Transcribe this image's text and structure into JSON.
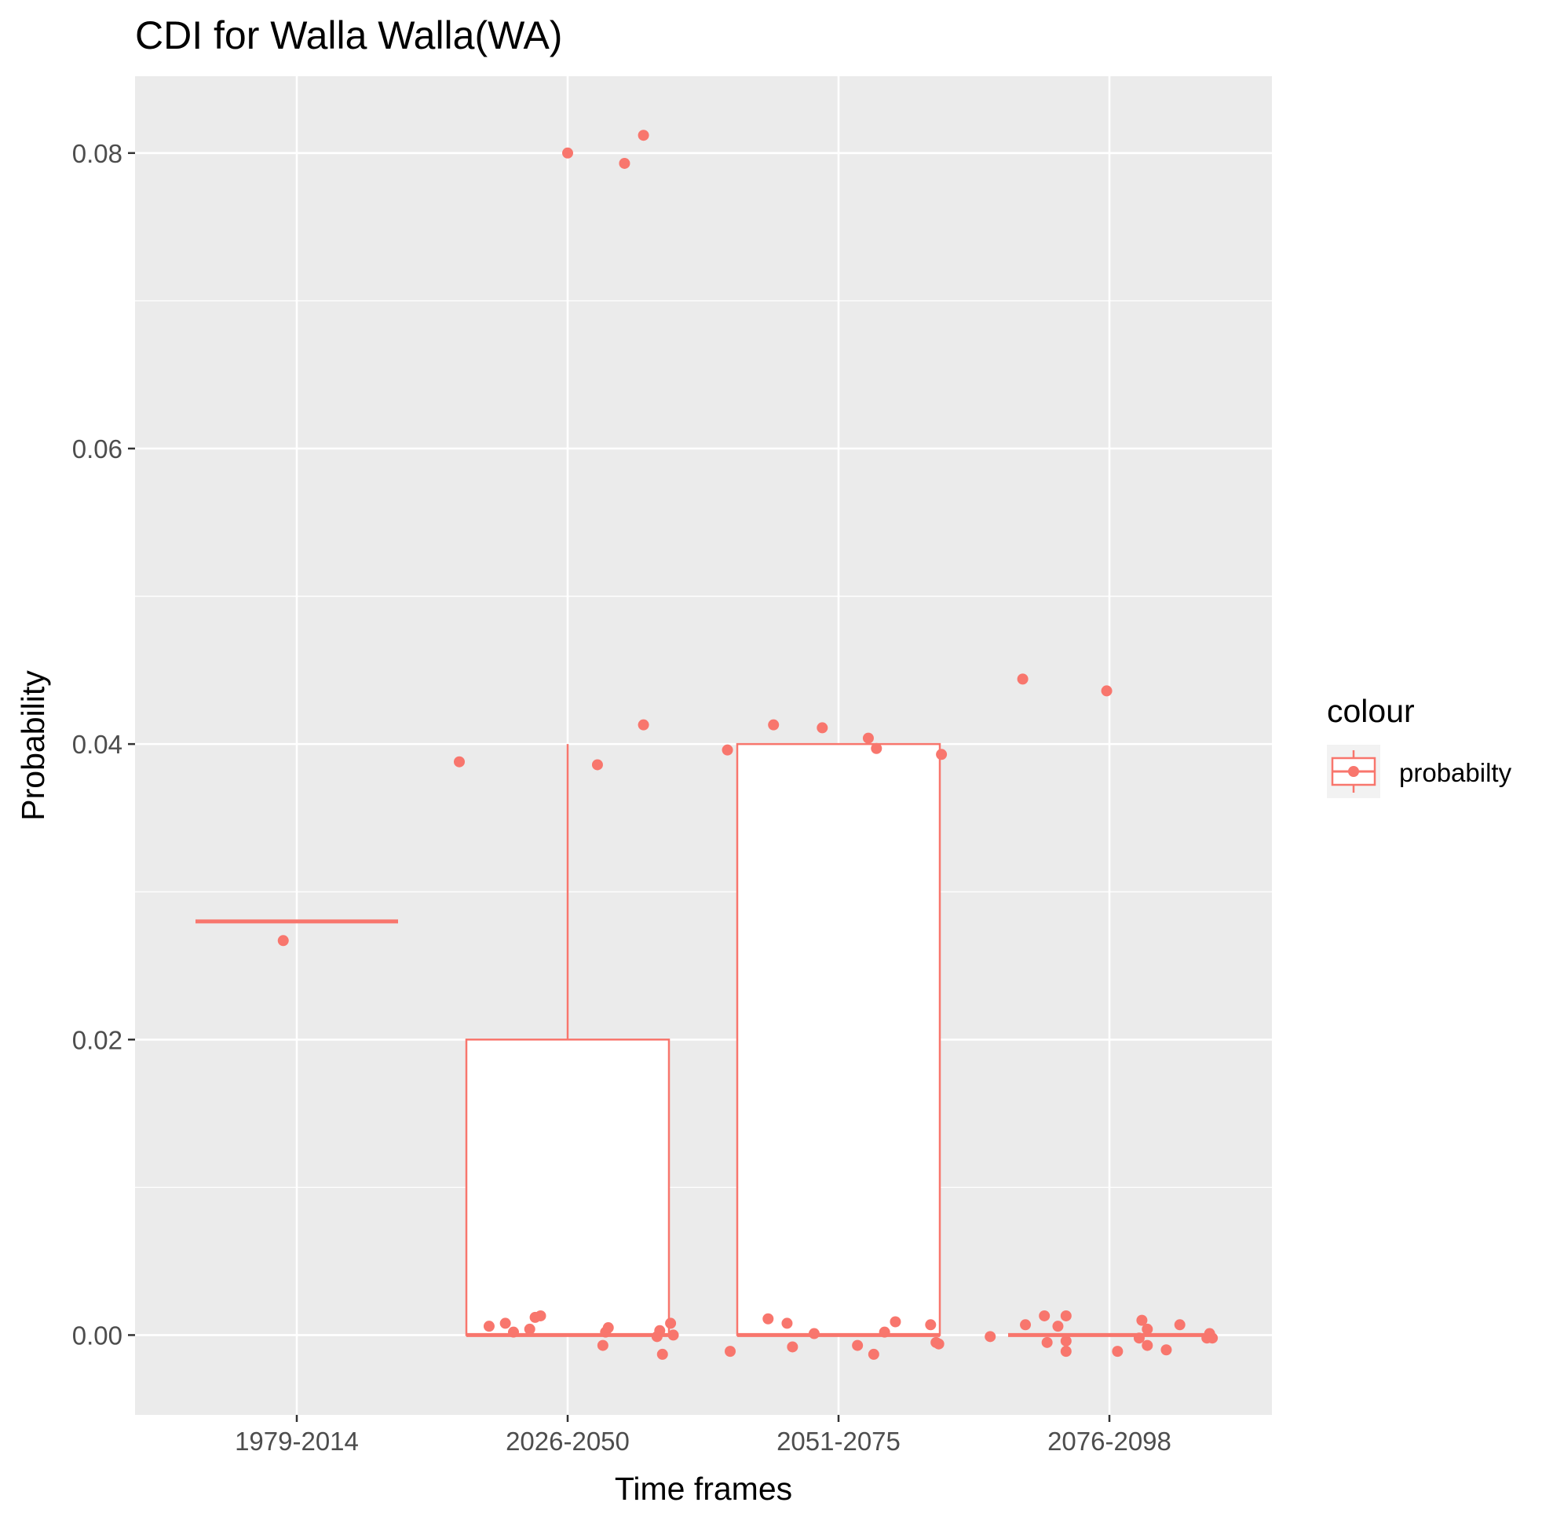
{
  "chart_data": {
    "type": "box",
    "title": "CDI for Walla Walla(WA)",
    "xlabel": "Time frames",
    "ylabel": "Probability",
    "categories": [
      "1979-2014",
      "2026-2050",
      "2051-2075",
      "2076-2098"
    ],
    "y_ticks": [
      "0.00",
      "0.02",
      "0.04",
      "0.06",
      "0.08"
    ],
    "ylim": [
      -0.0054,
      0.0852
    ],
    "grid": true,
    "legend": {
      "title": "colour",
      "entries": [
        "probabilty"
      ],
      "placement": "right"
    },
    "colors": {
      "series": "#F8766D",
      "panel": "#EBEBEB",
      "grid": "#FFFFFF"
    },
    "boxes": [
      {
        "category": "1979-2014",
        "lower_whisker": 0.028,
        "q1": 0.028,
        "median": 0.028,
        "q3": 0.028,
        "upper_whisker": 0.028
      },
      {
        "category": "2026-2050",
        "lower_whisker": 0.0,
        "q1": 0.0,
        "median": 0.0,
        "q3": 0.02,
        "upper_whisker": 0.04
      },
      {
        "category": "2051-2075",
        "lower_whisker": 0.0,
        "q1": 0.0,
        "median": 0.0,
        "q3": 0.04,
        "upper_whisker": 0.04
      },
      {
        "category": "2076-2098",
        "lower_whisker": 0.0,
        "q1": 0.0,
        "median": 0.0,
        "q3": 0.0,
        "upper_whisker": 0.0
      }
    ],
    "points": [
      {
        "x": 0.95,
        "y": 0.0267
      },
      {
        "x": 1.6,
        "y": 0.0388
      },
      {
        "x": 2.0,
        "y": 0.08
      },
      {
        "x": 2.11,
        "y": 0.0386
      },
      {
        "x": 2.21,
        "y": 0.0793
      },
      {
        "x": 2.28,
        "y": 0.0812
      },
      {
        "x": 2.28,
        "y": 0.0413
      },
      {
        "x": 1.71,
        "y": 0.0006
      },
      {
        "x": 1.77,
        "y": 0.0008
      },
      {
        "x": 1.8,
        "y": 0.0002
      },
      {
        "x": 1.86,
        "y": 0.0004
      },
      {
        "x": 1.88,
        "y": 0.0012
      },
      {
        "x": 1.9,
        "y": 0.0013
      },
      {
        "x": 2.13,
        "y": -0.0007
      },
      {
        "x": 2.14,
        "y": 0.0002
      },
      {
        "x": 2.15,
        "y": 0.0005
      },
      {
        "x": 2.33,
        "y": -0.0001
      },
      {
        "x": 2.34,
        "y": 0.0003
      },
      {
        "x": 2.35,
        "y": -0.0013
      },
      {
        "x": 2.38,
        "y": 0.0008
      },
      {
        "x": 2.39,
        "y": 0.0
      },
      {
        "x": 2.59,
        "y": 0.0396
      },
      {
        "x": 2.76,
        "y": 0.0413
      },
      {
        "x": 2.94,
        "y": 0.0411
      },
      {
        "x": 3.11,
        "y": 0.0404
      },
      {
        "x": 3.14,
        "y": 0.0397
      },
      {
        "x": 3.38,
        "y": 0.0393
      },
      {
        "x": 2.6,
        "y": -0.0011
      },
      {
        "x": 2.74,
        "y": 0.0011
      },
      {
        "x": 2.81,
        "y": 0.0008
      },
      {
        "x": 2.83,
        "y": -0.0008
      },
      {
        "x": 2.91,
        "y": 0.0001
      },
      {
        "x": 3.07,
        "y": -0.0007
      },
      {
        "x": 3.13,
        "y": -0.0013
      },
      {
        "x": 3.17,
        "y": 0.0002
      },
      {
        "x": 3.21,
        "y": 0.0009
      },
      {
        "x": 3.34,
        "y": 0.0007
      },
      {
        "x": 3.36,
        "y": -0.0005
      },
      {
        "x": 3.37,
        "y": -0.0006
      },
      {
        "x": 3.68,
        "y": 0.0444
      },
      {
        "x": 3.99,
        "y": 0.0436
      },
      {
        "x": 3.56,
        "y": -0.0001
      },
      {
        "x": 3.69,
        "y": 0.0007
      },
      {
        "x": 3.76,
        "y": 0.0013
      },
      {
        "x": 3.77,
        "y": -0.0005
      },
      {
        "x": 3.81,
        "y": 0.0006
      },
      {
        "x": 3.84,
        "y": 0.0013
      },
      {
        "x": 3.84,
        "y": -0.0004
      },
      {
        "x": 3.84,
        "y": -0.0011
      },
      {
        "x": 4.03,
        "y": -0.0011
      },
      {
        "x": 4.12,
        "y": 0.001
      },
      {
        "x": 4.11,
        "y": -0.0002
      },
      {
        "x": 4.14,
        "y": 0.0004
      },
      {
        "x": 4.14,
        "y": -0.0007
      },
      {
        "x": 4.21,
        "y": -0.001
      },
      {
        "x": 4.26,
        "y": 0.0007
      },
      {
        "x": 4.36,
        "y": -0.0002
      },
      {
        "x": 4.37,
        "y": 0.0001
      },
      {
        "x": 4.38,
        "y": -0.0002
      }
    ]
  }
}
